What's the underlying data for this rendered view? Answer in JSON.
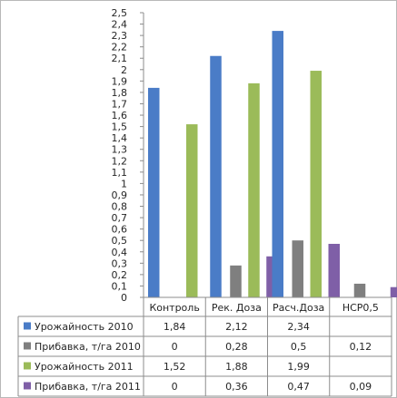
{
  "chart_data": {
    "type": "bar",
    "categories": [
      "Контроль",
      "Рек. Доза",
      "Расч.Доза",
      "НСР0,5"
    ],
    "series": [
      {
        "name": "Урожайность 2010",
        "values": [
          1.84,
          2.12,
          2.34,
          null
        ],
        "labels": [
          "1,84",
          "2,12",
          "2,34",
          ""
        ],
        "color": "#4a7cc7"
      },
      {
        "name": "Прибавка, т/га 2010",
        "values": [
          0,
          0.28,
          0.5,
          0.12
        ],
        "labels": [
          "0",
          "0,28",
          "0,5",
          "0,12"
        ],
        "color": "#7f7f7f"
      },
      {
        "name": "Урожайность 2011",
        "values": [
          1.52,
          1.88,
          1.99,
          null
        ],
        "labels": [
          "1,52",
          "1,88",
          "1,99",
          ""
        ],
        "color": "#9bbb59"
      },
      {
        "name": "Прибавка, т/га 2011",
        "values": [
          0,
          0.36,
          0.47,
          0.09
        ],
        "labels": [
          "0",
          "0,36",
          "0,47",
          "0,09"
        ],
        "color": "#7f5fa7"
      }
    ],
    "ylim": [
      0,
      2.5
    ],
    "y_ticks": [
      "0",
      "0,1",
      "0,2",
      "0,3",
      "0,4",
      "0,5",
      "0,6",
      "0,7",
      "0,8",
      "0,9",
      "1",
      "1,1",
      "1,2",
      "1,3",
      "1,4",
      "1,5",
      "1,6",
      "1,7",
      "1,8",
      "1,9",
      "2",
      "2,1",
      "2,2",
      "2,3",
      "2,4",
      "2,5"
    ],
    "grid": false,
    "legend": "data-table"
  }
}
